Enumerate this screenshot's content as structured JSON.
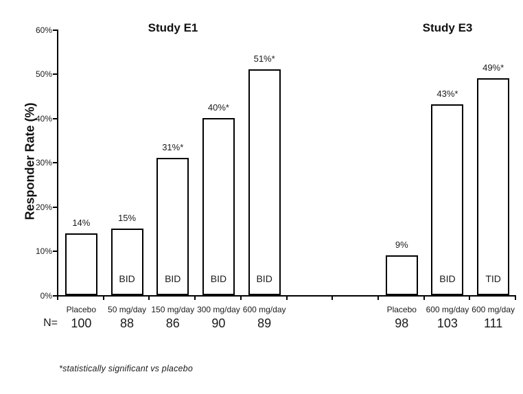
{
  "chart_data": {
    "type": "bar",
    "ylabel": "Responder Rate (%)",
    "ylim": [
      0,
      60
    ],
    "ytick_step": 10,
    "ytick_labels": [
      "0%",
      "10%",
      "20%",
      "30%",
      "40%",
      "50%",
      "60%"
    ],
    "total_slots": 10,
    "grid": false,
    "legend": "none",
    "n_prefix": "N=",
    "footnote": "*statistically significant vs placebo",
    "bar_style": {
      "fill": "#ffffff",
      "border": "#000000"
    },
    "groups": [
      {
        "name": "Study E1",
        "slot_start": 0,
        "bars": [
          {
            "category": "Placebo",
            "value": 14,
            "value_label": "14%",
            "n": "100",
            "dose_label": ""
          },
          {
            "category": "50 mg/day",
            "value": 15,
            "value_label": "15%",
            "n": "88",
            "dose_label": "BID"
          },
          {
            "category": "150 mg/day",
            "value": 31,
            "value_label": "31%*",
            "n": "86",
            "dose_label": "BID"
          },
          {
            "category": "300 mg/day",
            "value": 40,
            "value_label": "40%*",
            "n": "90",
            "dose_label": "BID"
          },
          {
            "category": "600 mg/day",
            "value": 51,
            "value_label": "51%*",
            "n": "89",
            "dose_label": "BID"
          }
        ]
      },
      {
        "name": "Study E3",
        "slot_start": 7,
        "bars": [
          {
            "category": "Placebo",
            "value": 9,
            "value_label": "9%",
            "n": "98",
            "dose_label": ""
          },
          {
            "category": "600 mg/day",
            "value": 43,
            "value_label": "43%*",
            "n": "103",
            "dose_label": "BID"
          },
          {
            "category": "600 mg/day",
            "value": 49,
            "value_label": "49%*",
            "n": "111",
            "dose_label": "TID"
          }
        ]
      }
    ]
  },
  "colors": {
    "background": "#ffffff",
    "text": "#1a1a1a",
    "axis": "#000000"
  }
}
